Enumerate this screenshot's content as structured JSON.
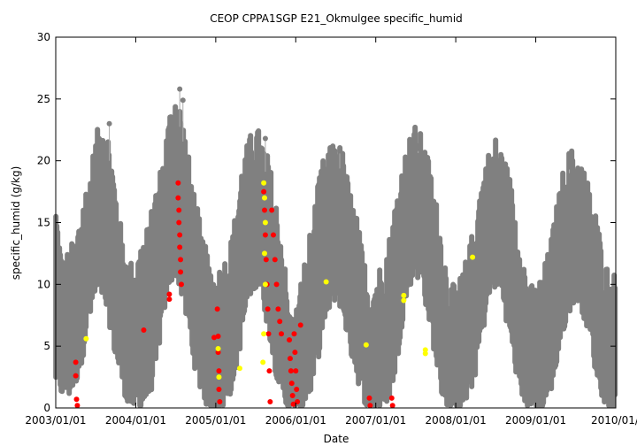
{
  "chart_data": {
    "type": "scatter",
    "title": "CEOP CPPA1SGP E21_Okmulgee  specific_humid",
    "xlabel": "Date",
    "ylabel": "specific_humid (g/kg)",
    "x_range": [
      "2003/01/01",
      "2010/01/01"
    ],
    "ylim": [
      0,
      30
    ],
    "xticks": [
      "2003/01/01",
      "2004/01/01",
      "2005/01/01",
      "2006/01/01",
      "2007/01/01",
      "2008/01/01",
      "2009/01/01",
      "2010/01/0"
    ],
    "yticks": [
      "0",
      "5",
      "10",
      "15",
      "20",
      "25",
      "30"
    ],
    "grid": false,
    "legend": "none",
    "colors": {
      "main": "#808080",
      "flag_red": "#ff0000",
      "flag_yellow": "#ffff00"
    },
    "seasonal_envelope": {
      "description": "dense grey hourly series; values per month are [low, high] in g/kg",
      "months": [
        {
          "t": 2003.0,
          "low": 3,
          "high": 15
        },
        {
          "t": 2003.08,
          "low": 2,
          "high": 10
        },
        {
          "t": 2003.17,
          "low": 2,
          "high": 11
        },
        {
          "t": 2003.25,
          "low": 3,
          "high": 12
        },
        {
          "t": 2003.33,
          "low": 5,
          "high": 15
        },
        {
          "t": 2003.42,
          "low": 8,
          "high": 17
        },
        {
          "t": 2003.5,
          "low": 10,
          "high": 20
        },
        {
          "t": 2003.58,
          "low": 10,
          "high": 22
        },
        {
          "t": 2003.67,
          "low": 8,
          "high": 20
        },
        {
          "t": 2003.75,
          "low": 5,
          "high": 16
        },
        {
          "t": 2003.83,
          "low": 3,
          "high": 12
        },
        {
          "t": 2003.92,
          "low": 1,
          "high": 10
        },
        {
          "t": 2004.0,
          "low": 1,
          "high": 10
        },
        {
          "t": 2004.08,
          "low": 1,
          "high": 12
        },
        {
          "t": 2004.17,
          "low": 2,
          "high": 13
        },
        {
          "t": 2004.25,
          "low": 4,
          "high": 16
        },
        {
          "t": 2004.33,
          "low": 8,
          "high": 18
        },
        {
          "t": 2004.42,
          "low": 11,
          "high": 22
        },
        {
          "t": 2004.5,
          "low": 12,
          "high": 24
        },
        {
          "t": 2004.58,
          "low": 10,
          "high": 22
        },
        {
          "t": 2004.67,
          "low": 7,
          "high": 18
        },
        {
          "t": 2004.75,
          "low": 4,
          "high": 15
        },
        {
          "t": 2004.83,
          "low": 2,
          "high": 12
        },
        {
          "t": 2004.92,
          "low": 1,
          "high": 10
        },
        {
          "t": 2005.0,
          "low": 0.5,
          "high": 9
        },
        {
          "t": 2005.08,
          "low": 1,
          "high": 10
        },
        {
          "t": 2005.17,
          "low": 2,
          "high": 11
        },
        {
          "t": 2005.25,
          "low": 4,
          "high": 14
        },
        {
          "t": 2005.33,
          "low": 7,
          "high": 18
        },
        {
          "t": 2005.42,
          "low": 10,
          "high": 20
        },
        {
          "t": 2005.5,
          "low": 11,
          "high": 21
        },
        {
          "t": 2005.58,
          "low": 10,
          "high": 20
        },
        {
          "t": 2005.67,
          "low": 7,
          "high": 18
        },
        {
          "t": 2005.75,
          "low": 4,
          "high": 15
        },
        {
          "t": 2005.83,
          "low": 2,
          "high": 12
        },
        {
          "t": 2005.92,
          "low": 0.5,
          "high": 6
        },
        {
          "t": 2006.0,
          "low": 0.5,
          "high": 6
        },
        {
          "t": 2006.08,
          "low": 1,
          "high": 9
        },
        {
          "t": 2006.17,
          "low": 2,
          "high": 12
        },
        {
          "t": 2006.25,
          "low": 4,
          "high": 15
        },
        {
          "t": 2006.33,
          "low": 7,
          "high": 18
        },
        {
          "t": 2006.42,
          "low": 9,
          "high": 19
        },
        {
          "t": 2006.5,
          "low": 10,
          "high": 20
        },
        {
          "t": 2006.58,
          "low": 9,
          "high": 19
        },
        {
          "t": 2006.67,
          "low": 6,
          "high": 16
        },
        {
          "t": 2006.75,
          "low": 4,
          "high": 14
        },
        {
          "t": 2006.83,
          "low": 2,
          "high": 11
        },
        {
          "t": 2006.92,
          "low": 1,
          "high": 8
        },
        {
          "t": 2007.0,
          "low": 1,
          "high": 9
        },
        {
          "t": 2007.08,
          "low": 1,
          "high": 10
        },
        {
          "t": 2007.17,
          "low": 2,
          "high": 12
        },
        {
          "t": 2007.25,
          "low": 4,
          "high": 15
        },
        {
          "t": 2007.33,
          "low": 8,
          "high": 18
        },
        {
          "t": 2007.42,
          "low": 11,
          "high": 20
        },
        {
          "t": 2007.5,
          "low": 12,
          "high": 21
        },
        {
          "t": 2007.58,
          "low": 11,
          "high": 20
        },
        {
          "t": 2007.67,
          "low": 8,
          "high": 18
        },
        {
          "t": 2007.75,
          "low": 5,
          "high": 15
        },
        {
          "t": 2007.83,
          "low": 2,
          "high": 12
        },
        {
          "t": 2007.92,
          "low": 1,
          "high": 8
        },
        {
          "t": 2008.0,
          "low": 1,
          "high": 8
        },
        {
          "t": 2008.08,
          "low": 1,
          "high": 9
        },
        {
          "t": 2008.17,
          "low": 2,
          "high": 11
        },
        {
          "t": 2008.25,
          "low": 4,
          "high": 14
        },
        {
          "t": 2008.33,
          "low": 7,
          "high": 17
        },
        {
          "t": 2008.42,
          "low": 10,
          "high": 19
        },
        {
          "t": 2008.5,
          "low": 11,
          "high": 20
        },
        {
          "t": 2008.58,
          "low": 10,
          "high": 19
        },
        {
          "t": 2008.67,
          "low": 7,
          "high": 17
        },
        {
          "t": 2008.75,
          "low": 4,
          "high": 14
        },
        {
          "t": 2008.83,
          "low": 2,
          "high": 11
        },
        {
          "t": 2008.92,
          "low": 1,
          "high": 8
        },
        {
          "t": 2009.0,
          "low": 0.5,
          "high": 8
        },
        {
          "t": 2009.08,
          "low": 1,
          "high": 9
        },
        {
          "t": 2009.17,
          "low": 2,
          "high": 11
        },
        {
          "t": 2009.25,
          "low": 4,
          "high": 14
        },
        {
          "t": 2009.33,
          "low": 7,
          "high": 17
        },
        {
          "t": 2009.42,
          "low": 9,
          "high": 19
        },
        {
          "t": 2009.5,
          "low": 10,
          "high": 19
        },
        {
          "t": 2009.58,
          "low": 9,
          "high": 18
        },
        {
          "t": 2009.67,
          "low": 7,
          "high": 16
        },
        {
          "t": 2009.75,
          "low": 4,
          "high": 14
        },
        {
          "t": 2009.83,
          "low": 2,
          "high": 11
        },
        {
          "t": 2009.92,
          "low": 1,
          "high": 9
        },
        {
          "t": 2010.0,
          "low": 1,
          "high": 9
        }
      ],
      "spikes": [
        {
          "t": 2004.55,
          "value": 25.8
        },
        {
          "t": 2004.59,
          "value": 24.9
        },
        {
          "t": 2003.67,
          "value": 23.0
        },
        {
          "t": 2005.62,
          "value": 21.8
        },
        {
          "t": 2006.55,
          "value": 20.8
        },
        {
          "t": 2007.53,
          "value": 21.0
        },
        {
          "t": 2009.42,
          "value": 19.5
        }
      ]
    },
    "series": [
      {
        "name": "flag_red",
        "color": "#ff0000",
        "points": [
          {
            "t": 2003.25,
            "y": 3.7
          },
          {
            "t": 2003.25,
            "y": 2.6
          },
          {
            "t": 2003.26,
            "y": 0.7
          },
          {
            "t": 2003.27,
            "y": 0.2
          },
          {
            "t": 2004.1,
            "y": 6.3
          },
          {
            "t": 2004.42,
            "y": 8.8
          },
          {
            "t": 2004.42,
            "y": 9.2
          },
          {
            "t": 2004.53,
            "y": 18.2
          },
          {
            "t": 2004.53,
            "y": 17.0
          },
          {
            "t": 2004.54,
            "y": 16.0
          },
          {
            "t": 2004.54,
            "y": 15.0
          },
          {
            "t": 2004.55,
            "y": 14.0
          },
          {
            "t": 2004.55,
            "y": 13.0
          },
          {
            "t": 2004.56,
            "y": 12.0
          },
          {
            "t": 2004.56,
            "y": 11.0
          },
          {
            "t": 2004.57,
            "y": 10.0
          },
          {
            "t": 2004.98,
            "y": 5.7
          },
          {
            "t": 2005.02,
            "y": 8.0
          },
          {
            "t": 2005.03,
            "y": 5.8
          },
          {
            "t": 2005.03,
            "y": 4.5
          },
          {
            "t": 2005.04,
            "y": 3.0
          },
          {
            "t": 2005.04,
            "y": 1.5
          },
          {
            "t": 2005.05,
            "y": 0.5
          },
          {
            "t": 2005.6,
            "y": 17.5
          },
          {
            "t": 2005.61,
            "y": 16.0
          },
          {
            "t": 2005.62,
            "y": 14.0
          },
          {
            "t": 2005.63,
            "y": 12.0
          },
          {
            "t": 2005.64,
            "y": 10.0
          },
          {
            "t": 2005.65,
            "y": 8.0
          },
          {
            "t": 2005.66,
            "y": 6.0
          },
          {
            "t": 2005.67,
            "y": 3.0
          },
          {
            "t": 2005.68,
            "y": 0.5
          },
          {
            "t": 2005.7,
            "y": 16.0
          },
          {
            "t": 2005.72,
            "y": 14.0
          },
          {
            "t": 2005.74,
            "y": 12.0
          },
          {
            "t": 2005.76,
            "y": 10.0
          },
          {
            "t": 2005.78,
            "y": 8.0
          },
          {
            "t": 2005.8,
            "y": 7.0
          },
          {
            "t": 2005.82,
            "y": 6.0
          },
          {
            "t": 2005.92,
            "y": 5.5
          },
          {
            "t": 2005.93,
            "y": 4.0
          },
          {
            "t": 2005.94,
            "y": 3.0
          },
          {
            "t": 2005.95,
            "y": 2.0
          },
          {
            "t": 2005.96,
            "y": 1.0
          },
          {
            "t": 2005.97,
            "y": 0.3
          },
          {
            "t": 2005.98,
            "y": 6.0
          },
          {
            "t": 2005.99,
            "y": 4.5
          },
          {
            "t": 2006.0,
            "y": 3.0
          },
          {
            "t": 2006.01,
            "y": 1.5
          },
          {
            "t": 2006.02,
            "y": 0.5
          },
          {
            "t": 2006.06,
            "y": 6.7
          },
          {
            "t": 2006.92,
            "y": 0.8
          },
          {
            "t": 2006.93,
            "y": 0.2
          },
          {
            "t": 2007.2,
            "y": 0.8
          },
          {
            "t": 2007.21,
            "y": 0.2
          }
        ]
      },
      {
        "name": "flag_yellow",
        "color": "#ffff00",
        "points": [
          {
            "t": 2003.38,
            "y": 5.6
          },
          {
            "t": 2005.03,
            "y": 4.8
          },
          {
            "t": 2005.04,
            "y": 2.5
          },
          {
            "t": 2005.3,
            "y": 3.2
          },
          {
            "t": 2005.6,
            "y": 18.2
          },
          {
            "t": 2005.61,
            "y": 17.0
          },
          {
            "t": 2005.62,
            "y": 15.0
          },
          {
            "t": 2005.61,
            "y": 12.5
          },
          {
            "t": 2005.62,
            "y": 10.0
          },
          {
            "t": 2005.6,
            "y": 6.0
          },
          {
            "t": 2005.59,
            "y": 3.7
          },
          {
            "t": 2006.38,
            "y": 10.2
          },
          {
            "t": 2006.88,
            "y": 5.1
          },
          {
            "t": 2007.35,
            "y": 9.1
          },
          {
            "t": 2007.35,
            "y": 8.7
          },
          {
            "t": 2007.62,
            "y": 4.7
          },
          {
            "t": 2007.62,
            "y": 4.4
          },
          {
            "t": 2008.21,
            "y": 12.2
          }
        ]
      }
    ]
  }
}
